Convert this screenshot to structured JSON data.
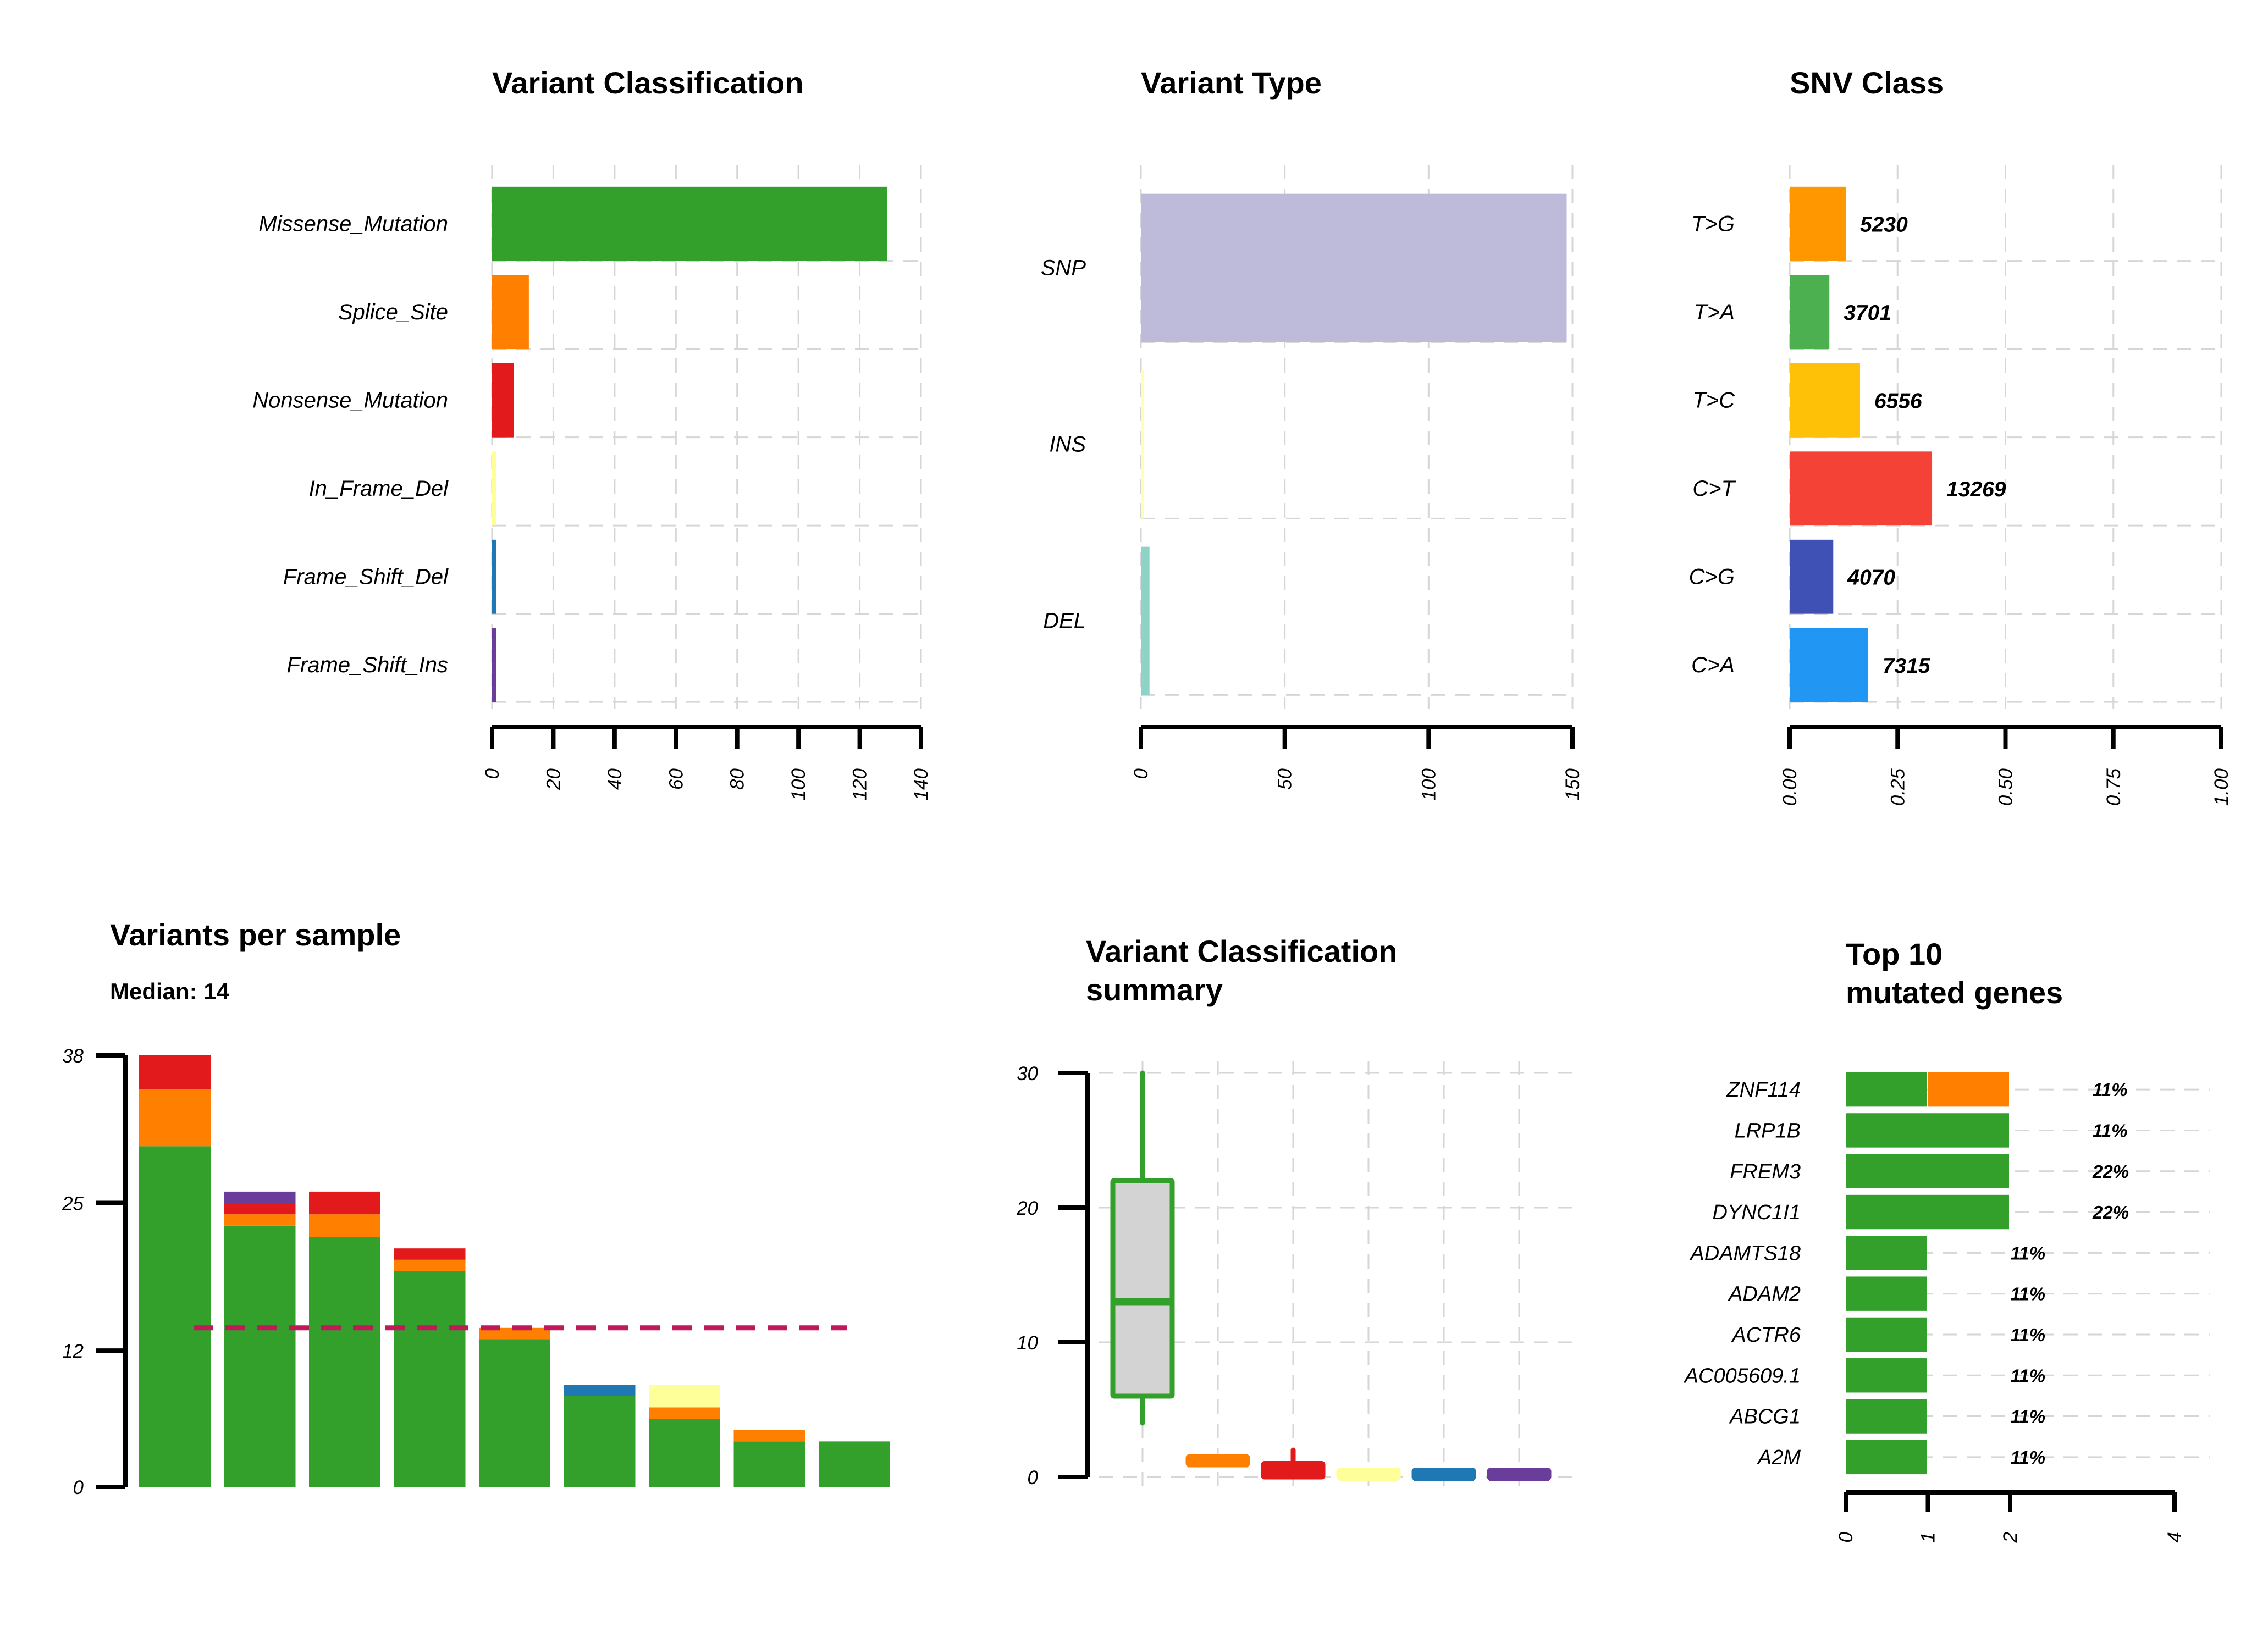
{
  "colors": {
    "Missense_Mutation": "#33a02c",
    "Splice_Site": "#ff7f00",
    "Nonsense_Mutation": "#e31a1c",
    "In_Frame_Del": "#ffff99",
    "Frame_Shift_Del": "#1f78b4",
    "Frame_Shift_Ins": "#6a3d9a",
    "SNP": "#bebada",
    "INS": "#ffffb3",
    "DEL": "#8dd3c7",
    "T>G": "#ff9800",
    "T>A": "#4caf50",
    "T>C": "#ffc107",
    "C>T": "#f44336",
    "C>G": "#3f51b5",
    "C>A": "#2196f3",
    "median_line": "#c2185b",
    "box_fill": "#d3d3d3"
  },
  "chart_data": [
    {
      "id": "vc",
      "type": "bar",
      "orientation": "horizontal",
      "title": "Variant Classification",
      "categories": [
        "Missense_Mutation",
        "Splice_Site",
        "Nonsense_Mutation",
        "In_Frame_Del",
        "Frame_Shift_Del",
        "Frame_Shift_Ins"
      ],
      "values": [
        129,
        12,
        7,
        1,
        1,
        1
      ],
      "xlim": [
        0,
        140
      ],
      "xticks": [
        "0",
        "20",
        "40",
        "60",
        "80",
        "100",
        "120",
        "140"
      ],
      "grid": true
    },
    {
      "id": "vt",
      "type": "bar",
      "orientation": "horizontal",
      "title": "Variant Type",
      "categories": [
        "SNP",
        "INS",
        "DEL"
      ],
      "values": [
        148,
        1,
        3
      ],
      "xlim": [
        0,
        150
      ],
      "xticks": [
        "0",
        "50",
        "100",
        "150"
      ],
      "grid": true
    },
    {
      "id": "snv",
      "type": "bar",
      "orientation": "horizontal",
      "title": "SNV Class",
      "categories": [
        "T>G",
        "T>A",
        "T>C",
        "C>T",
        "C>G",
        "C>A"
      ],
      "values": [
        0.13,
        0.092,
        0.163,
        0.33,
        0.101,
        0.182
      ],
      "counts": [
        "5230",
        "3701",
        "6556",
        "13269",
        "4070",
        "7315"
      ],
      "xlim": [
        0,
        1
      ],
      "xticks": [
        "0.00",
        "0.25",
        "0.50",
        "0.75",
        "1.00"
      ],
      "grid": true
    },
    {
      "id": "vps",
      "type": "bar",
      "stacked": true,
      "title": "Variants per sample",
      "subtitle": "Median: 14",
      "ylim": [
        0,
        38
      ],
      "yticks": [
        "0",
        "12",
        "25",
        "38"
      ],
      "median": 14,
      "series": [
        {
          "name": "Missense_Mutation",
          "values": [
            30,
            23,
            22,
            19,
            13,
            8,
            6,
            4,
            4
          ]
        },
        {
          "name": "Splice_Site",
          "values": [
            5,
            1,
            2,
            1,
            1,
            0,
            1,
            1,
            0
          ]
        },
        {
          "name": "Nonsense_Mutation",
          "values": [
            3,
            1,
            2,
            1,
            0,
            0,
            0,
            0,
            0
          ]
        },
        {
          "name": "In_Frame_Del",
          "values": [
            0,
            0,
            0,
            0,
            0,
            0,
            2,
            0,
            0
          ]
        },
        {
          "name": "Frame_Shift_Del",
          "values": [
            0,
            0,
            0,
            0,
            0,
            1,
            0,
            0,
            0
          ]
        },
        {
          "name": "Frame_Shift_Ins",
          "values": [
            0,
            1,
            0,
            0,
            0,
            0,
            0,
            0,
            0
          ]
        }
      ]
    },
    {
      "id": "vcs",
      "type": "box",
      "title": "Variant Classification",
      "title2": "summary",
      "ylim": [
        0,
        30
      ],
      "yticks": [
        "0",
        "10",
        "20",
        "30"
      ],
      "boxes": [
        {
          "name": "Missense_Mutation",
          "min": 4,
          "q1": 6,
          "median": 13,
          "q3": 22,
          "max": 30
        },
        {
          "name": "Splice_Site",
          "min": 1,
          "q1": 1,
          "median": 1,
          "q3": 1.5,
          "max": 1.5
        },
        {
          "name": "Nonsense_Mutation",
          "min": 0,
          "q1": 0,
          "median": 0.5,
          "q3": 1,
          "max": 2
        },
        {
          "name": "In_Frame_Del",
          "min": 0,
          "q1": 0,
          "median": 0,
          "q3": 0.5,
          "max": 0.5
        },
        {
          "name": "Frame_Shift_Del",
          "min": 0,
          "q1": 0,
          "median": 0,
          "q3": 0.5,
          "max": 0.5
        },
        {
          "name": "Frame_Shift_Ins",
          "min": 0,
          "q1": 0,
          "median": 0,
          "q3": 0.5,
          "max": 0.5
        }
      ]
    },
    {
      "id": "top10",
      "type": "bar",
      "orientation": "horizontal",
      "stacked": true,
      "title": "Top 10",
      "title2": "mutated genes",
      "xlim": [
        0,
        4
      ],
      "xticks": [
        "0",
        "1",
        "2",
        "4"
      ],
      "genes": [
        "ZNF114",
        "LRP1B",
        "FREM3",
        "DYNC1I1",
        "ADAMTS18",
        "ADAM2",
        "ACTR6",
        "AC005609.1",
        "ABCG1",
        "A2M"
      ],
      "series": [
        {
          "name": "Missense_Mutation",
          "values": [
            1,
            2,
            2,
            2,
            1,
            1,
            1,
            1,
            1,
            1
          ]
        },
        {
          "name": "Splice_Site",
          "values": [
            1,
            0,
            0,
            0,
            0,
            0,
            0,
            0,
            0,
            0
          ]
        }
      ],
      "percents": [
        "11%",
        "11%",
        "22%",
        "22%",
        "11%",
        "11%",
        "11%",
        "11%",
        "11%",
        "11%"
      ]
    }
  ]
}
